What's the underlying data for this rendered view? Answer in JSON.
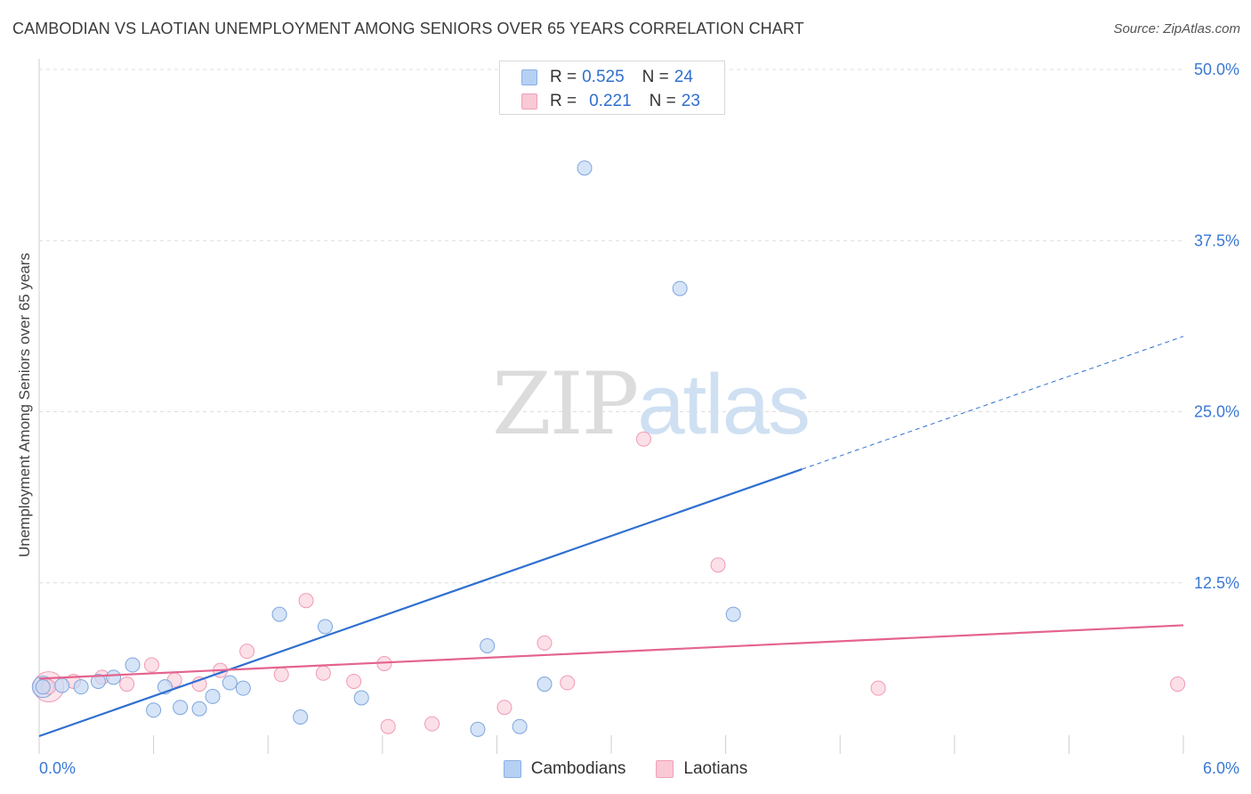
{
  "title": "CAMBODIAN VS LAOTIAN UNEMPLOYMENT AMONG SENIORS OVER 65 YEARS CORRELATION CHART",
  "source": "Source: ZipAtlas.com",
  "watermark": {
    "zip": "ZIP",
    "atlas": "atlas"
  },
  "legend_top": {
    "rows": [
      {
        "r_label": "R =",
        "r_value": "0.525",
        "n_label": "N =",
        "n_value": "24",
        "color": "#b6d0f4",
        "border": "#8ab0e6"
      },
      {
        "r_label": "R =",
        "r_value": "0.221",
        "n_label": "N =",
        "n_value": "23",
        "color": "#f9c9d6",
        "border": "#f0a0b8"
      }
    ]
  },
  "colors": {
    "cambodian_fill": "#c5d9f4",
    "cambodian_stroke": "#7ea6de",
    "cambodian_line": "#2f6fd0",
    "laotian_fill": "#fbd3de",
    "laotian_stroke": "#f19ab3",
    "laotian_line": "#e4648e",
    "axis_label": "#3a78d4",
    "grid": "#dcdcdc"
  },
  "chart_data": {
    "type": "scatter",
    "title": "CAMBODIAN VS LAOTIAN UNEMPLOYMENT AMONG SENIORS OVER 65 YEARS CORRELATION CHART",
    "xlabel": "",
    "ylabel": "Unemployment Among Seniors over 65 years",
    "xlim": [
      0,
      6
    ],
    "ylim": [
      0,
      50
    ],
    "x_tick_labels": [
      "0.0%",
      "6.0%"
    ],
    "y_ticks": [
      12.5,
      25.0,
      37.5,
      50.0
    ],
    "y_tick_labels": [
      "12.5%",
      "25.0%",
      "37.5%",
      "50.0%"
    ],
    "legend": [
      "Cambodians",
      "Laotians"
    ],
    "series": [
      {
        "name": "Cambodians",
        "r": 0.525,
        "n": 24,
        "points": [
          {
            "x": 0.02,
            "y": 4.9
          },
          {
            "x": 0.12,
            "y": 5.0
          },
          {
            "x": 0.22,
            "y": 4.9
          },
          {
            "x": 0.31,
            "y": 5.3
          },
          {
            "x": 0.39,
            "y": 5.6
          },
          {
            "x": 0.49,
            "y": 6.5
          },
          {
            "x": 0.6,
            "y": 3.2
          },
          {
            "x": 0.66,
            "y": 4.9
          },
          {
            "x": 0.74,
            "y": 3.4
          },
          {
            "x": 0.84,
            "y": 3.3
          },
          {
            "x": 0.91,
            "y": 4.2
          },
          {
            "x": 1.0,
            "y": 5.2
          },
          {
            "x": 1.07,
            "y": 4.8
          },
          {
            "x": 1.26,
            "y": 10.2
          },
          {
            "x": 1.37,
            "y": 2.7
          },
          {
            "x": 1.5,
            "y": 9.3
          },
          {
            "x": 1.69,
            "y": 4.1
          },
          {
            "x": 2.3,
            "y": 1.8
          },
          {
            "x": 2.35,
            "y": 7.9
          },
          {
            "x": 2.52,
            "y": 2.0
          },
          {
            "x": 2.65,
            "y": 5.1
          },
          {
            "x": 2.86,
            "y": 42.8
          },
          {
            "x": 3.36,
            "y": 34.0
          },
          {
            "x": 3.64,
            "y": 10.2
          }
        ],
        "trend": {
          "x": [
            0,
            4.0
          ],
          "y": [
            1.3,
            20.8
          ]
        },
        "trend_extension": {
          "x": [
            4.0,
            6.0
          ],
          "y": [
            20.8,
            30.5
          ]
        }
      },
      {
        "name": "Laotians",
        "r": 0.221,
        "n": 23,
        "points": [
          {
            "x": 0.05,
            "y": 4.9
          },
          {
            "x": 0.18,
            "y": 5.3
          },
          {
            "x": 0.33,
            "y": 5.6
          },
          {
            "x": 0.46,
            "y": 5.1
          },
          {
            "x": 0.59,
            "y": 6.5
          },
          {
            "x": 0.71,
            "y": 5.4
          },
          {
            "x": 0.84,
            "y": 5.1
          },
          {
            "x": 0.95,
            "y": 6.1
          },
          {
            "x": 1.09,
            "y": 7.5
          },
          {
            "x": 1.27,
            "y": 5.8
          },
          {
            "x": 1.4,
            "y": 11.2
          },
          {
            "x": 1.49,
            "y": 5.9
          },
          {
            "x": 1.65,
            "y": 5.3
          },
          {
            "x": 1.81,
            "y": 6.6
          },
          {
            "x": 1.83,
            "y": 2.0
          },
          {
            "x": 2.06,
            "y": 2.2
          },
          {
            "x": 2.44,
            "y": 3.4
          },
          {
            "x": 2.65,
            "y": 8.1
          },
          {
            "x": 2.77,
            "y": 5.2
          },
          {
            "x": 3.17,
            "y": 23.0
          },
          {
            "x": 3.56,
            "y": 13.8
          },
          {
            "x": 4.4,
            "y": 4.8
          },
          {
            "x": 5.97,
            "y": 5.1
          }
        ],
        "trend": {
          "x": [
            0,
            6.0
          ],
          "y": [
            5.5,
            9.4
          ]
        }
      }
    ]
  }
}
